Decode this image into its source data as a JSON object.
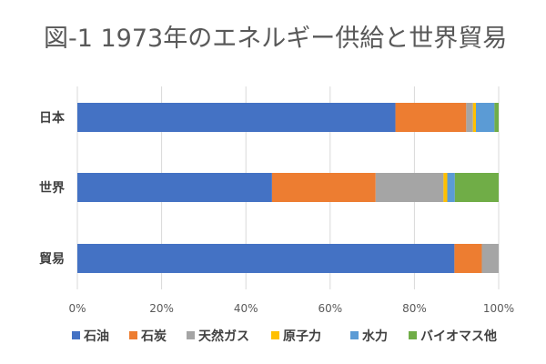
{
  "chart_data": {
    "type": "bar",
    "orientation": "horizontal",
    "stacked": "percent",
    "title": "図-1 1973年のエネルギー供給と世界貿易",
    "categories": [
      "日本",
      "世界",
      "貿易"
    ],
    "xlim": [
      0,
      100
    ],
    "xticks": [
      0,
      20,
      40,
      60,
      80,
      100
    ],
    "xtick_labels": [
      "0%",
      "20%",
      "40%",
      "60%",
      "80%",
      "100%"
    ],
    "grid": true,
    "legend_position": "bottom",
    "series": [
      {
        "name": "石油",
        "color": "#4472C4",
        "values": [
          75.5,
          46.2,
          89.5
        ]
      },
      {
        "name": "石炭",
        "color": "#ED7D31",
        "values": [
          16.8,
          24.6,
          6.5
        ]
      },
      {
        "name": "天然ガス",
        "color": "#A5A5A5",
        "values": [
          1.6,
          16.1,
          4.0
        ]
      },
      {
        "name": "原子力",
        "color": "#FFC000",
        "values": [
          0.7,
          0.9,
          0
        ]
      },
      {
        "name": "水力",
        "color": "#5B9BD5",
        "values": [
          4.4,
          1.8,
          0
        ]
      },
      {
        "name": "バイオマス他",
        "color": "#70AD47",
        "values": [
          1.0,
          10.4,
          0
        ]
      }
    ]
  }
}
